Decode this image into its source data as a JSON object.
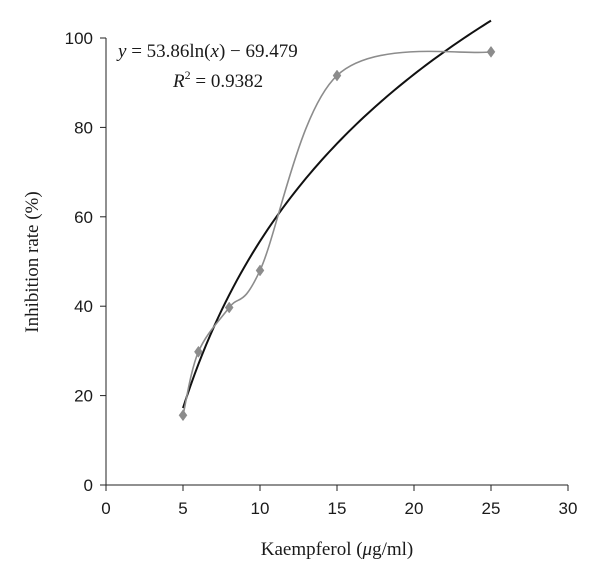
{
  "chart_data": {
    "type": "scatter",
    "xlabel_text": "Kaempferol (",
    "xlabel_unit_mu": "μ",
    "xlabel_unit_rest": "g/ml)",
    "ylabel": "Inhibition rate (%)",
    "xlim": [
      0,
      30
    ],
    "ylim": [
      0,
      100
    ],
    "x_ticks": [
      0,
      5,
      10,
      15,
      20,
      25,
      30
    ],
    "y_ticks": [
      0,
      20,
      40,
      60,
      80,
      100
    ],
    "grid": false,
    "series": [
      {
        "x": [
          5,
          6,
          8,
          10,
          15,
          25
        ],
        "y": [
          15.6,
          29.8,
          39.7,
          48.0,
          91.6,
          96.9
        ],
        "marker": "diamond",
        "line": "smooth",
        "color": "#8c8c8c"
      }
    ],
    "trendline": {
      "type": "logarithmic",
      "a": 53.86,
      "b": -69.479,
      "x_range": [
        5,
        25
      ],
      "color": "#111111"
    },
    "annotation": {
      "eq_y": "y",
      "eq_mid": " = 53.86ln(",
      "eq_x": "x",
      "eq_end": ") − 69.479",
      "r2_R": "R",
      "r2_sup": "2",
      "r2_val": " = 0.9382"
    }
  }
}
